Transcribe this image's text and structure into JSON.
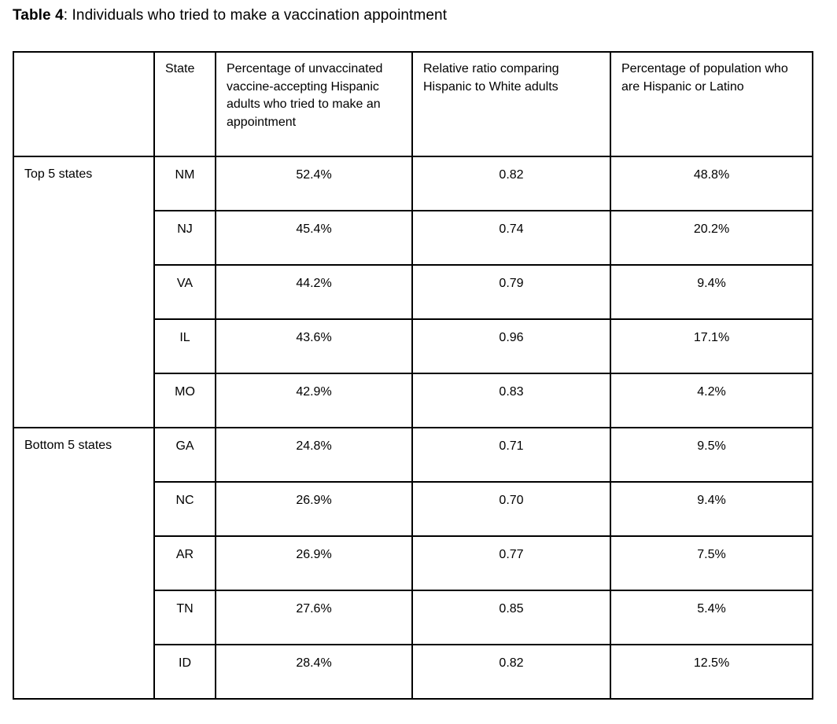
{
  "title": {
    "label": "Table 4",
    "rest": ": Individuals who tried to make a vaccination appointment"
  },
  "table": {
    "columns": [
      "",
      "State",
      "Percentage of unvaccinated vaccine-accepting Hispanic adults who tried to make an appointment",
      "Relative ratio comparing Hispanic to White adults",
      "Percentage of population who are Hispanic or Latino"
    ],
    "groups": [
      {
        "label": "Top 5 states",
        "rows": [
          {
            "state": "NM",
            "pct_tried": "52.4%",
            "ratio": "0.82",
            "pct_pop": "48.8%"
          },
          {
            "state": "NJ",
            "pct_tried": "45.4%",
            "ratio": "0.74",
            "pct_pop": "20.2%"
          },
          {
            "state": "VA",
            "pct_tried": "44.2%",
            "ratio": "0.79",
            "pct_pop": "9.4%"
          },
          {
            "state": "IL",
            "pct_tried": "43.6%",
            "ratio": "0.96",
            "pct_pop": "17.1%"
          },
          {
            "state": "MO",
            "pct_tried": "42.9%",
            "ratio": "0.83",
            "pct_pop": "4.2%"
          }
        ]
      },
      {
        "label": "Bottom 5 states",
        "rows": [
          {
            "state": "GA",
            "pct_tried": "24.8%",
            "ratio": "0.71",
            "pct_pop": "9.5%"
          },
          {
            "state": "NC",
            "pct_tried": "26.9%",
            "ratio": "0.70",
            "pct_pop": "9.4%"
          },
          {
            "state": "AR",
            "pct_tried": "26.9%",
            "ratio": "0.77",
            "pct_pop": "7.5%"
          },
          {
            "state": "TN",
            "pct_tried": "27.6%",
            "ratio": "0.85",
            "pct_pop": "5.4%"
          },
          {
            "state": "ID",
            "pct_tried": "28.4%",
            "ratio": "0.82",
            "pct_pop": "12.5%"
          }
        ]
      }
    ]
  }
}
